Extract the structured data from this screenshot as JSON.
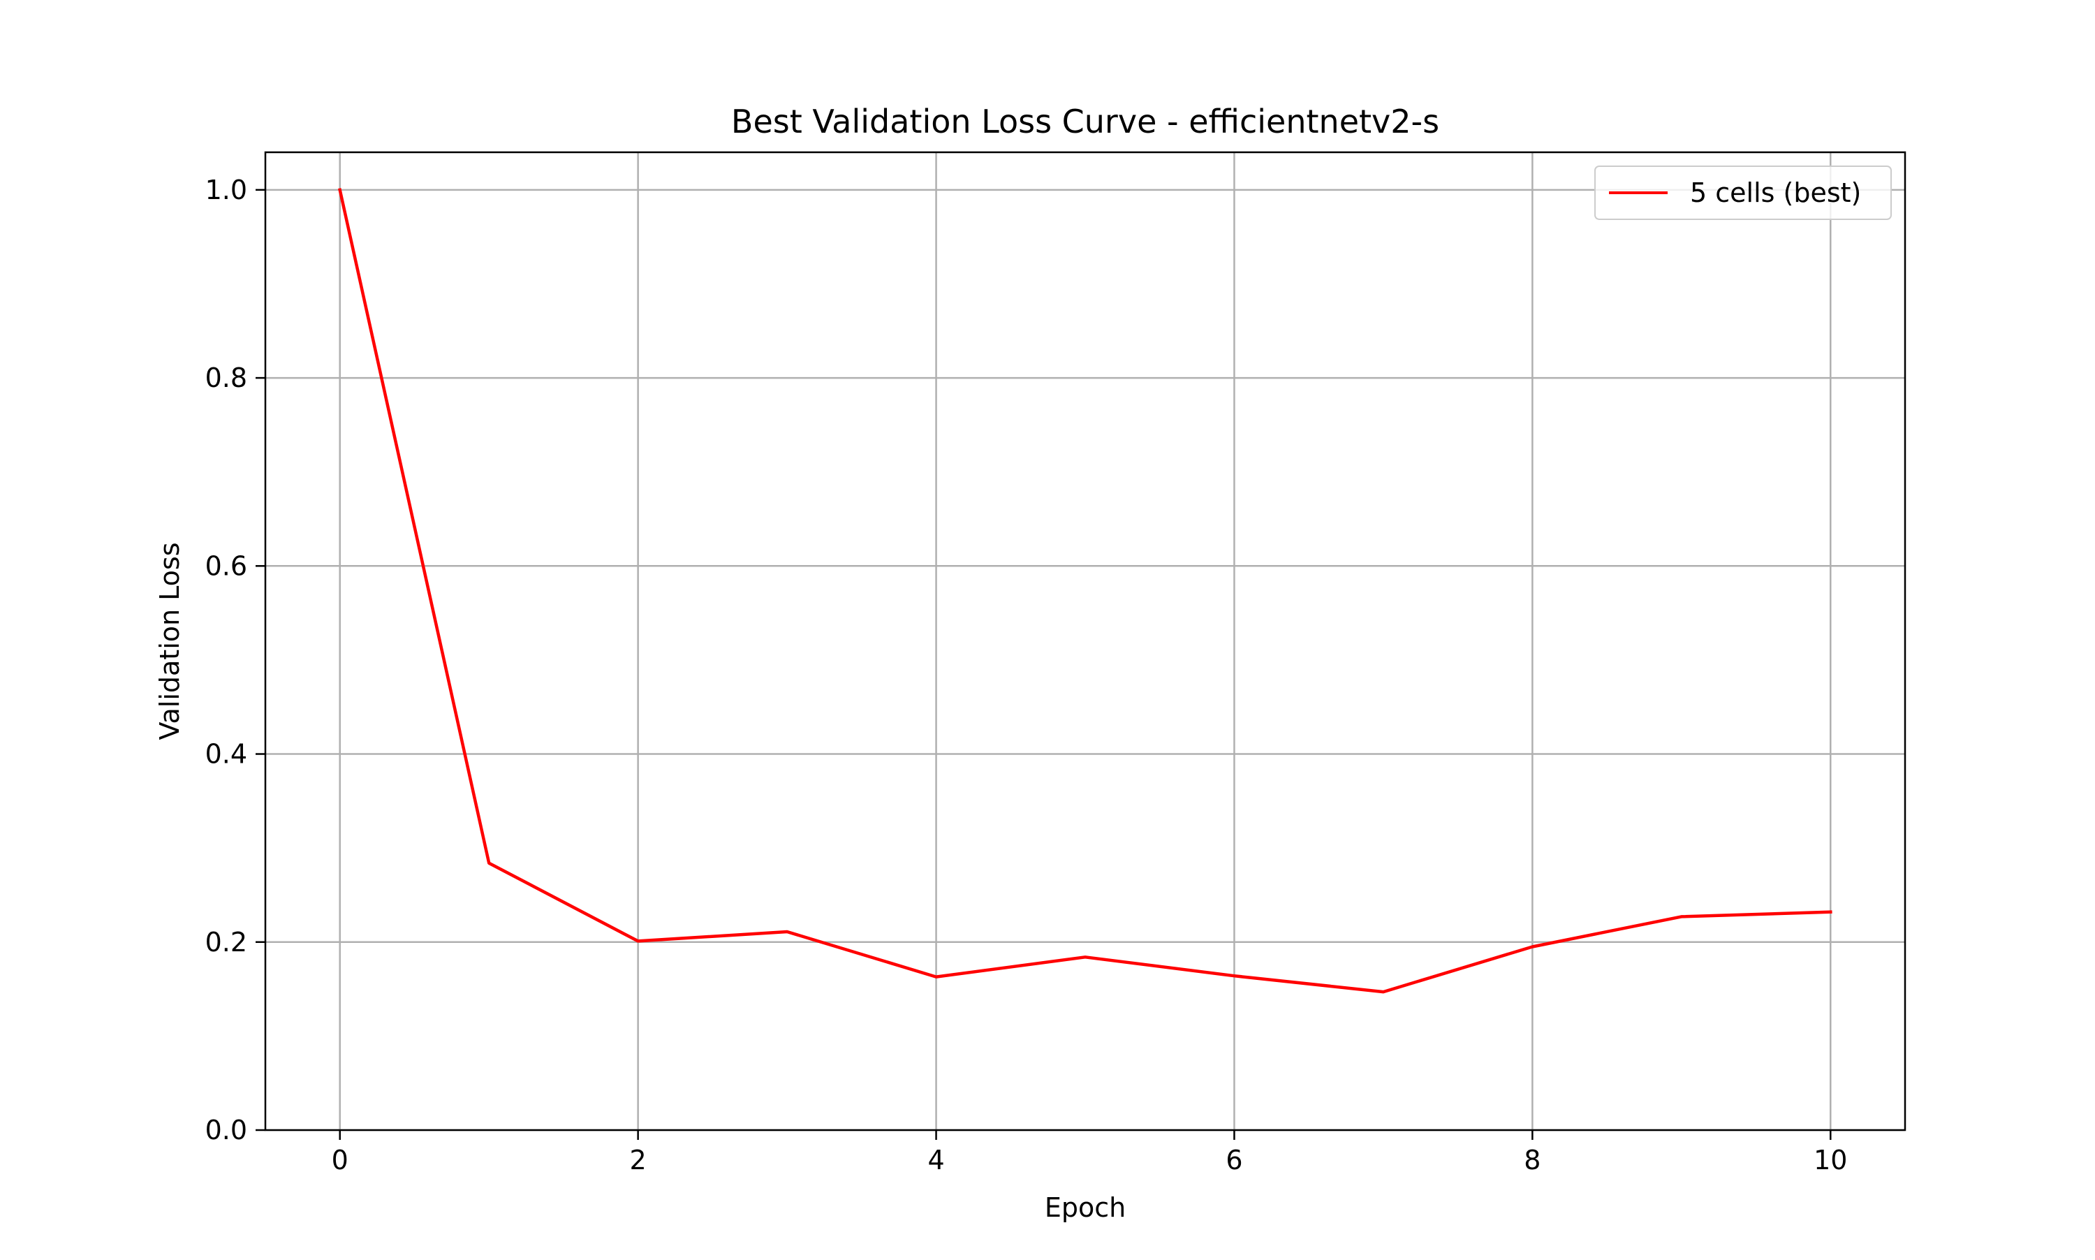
{
  "chart_data": {
    "type": "line",
    "title": "Best Validation Loss Curve - efficientnetv2-s",
    "xlabel": "Epoch",
    "ylabel": "Validation Loss",
    "xlim": [
      -0.5,
      10.5
    ],
    "ylim": [
      0.0,
      1.04
    ],
    "xticks": [
      0,
      2,
      4,
      6,
      8,
      10
    ],
    "xtick_labels": [
      "0",
      "2",
      "4",
      "6",
      "8",
      "10"
    ],
    "yticks": [
      0.0,
      0.2,
      0.4,
      0.6,
      0.8,
      1.0
    ],
    "ytick_labels": [
      "0.0",
      "0.2",
      "0.4",
      "0.6",
      "0.8",
      "1.0"
    ],
    "grid": true,
    "legend_position": "top-right",
    "series": [
      {
        "name": "5 cells (best)",
        "color": "#ff0000",
        "x": [
          0,
          1,
          2,
          3,
          4,
          5,
          6,
          7,
          8,
          9,
          10
        ],
        "y": [
          1.0,
          0.284,
          0.201,
          0.211,
          0.163,
          0.184,
          0.164,
          0.147,
          0.195,
          0.227,
          0.232
        ]
      }
    ]
  }
}
